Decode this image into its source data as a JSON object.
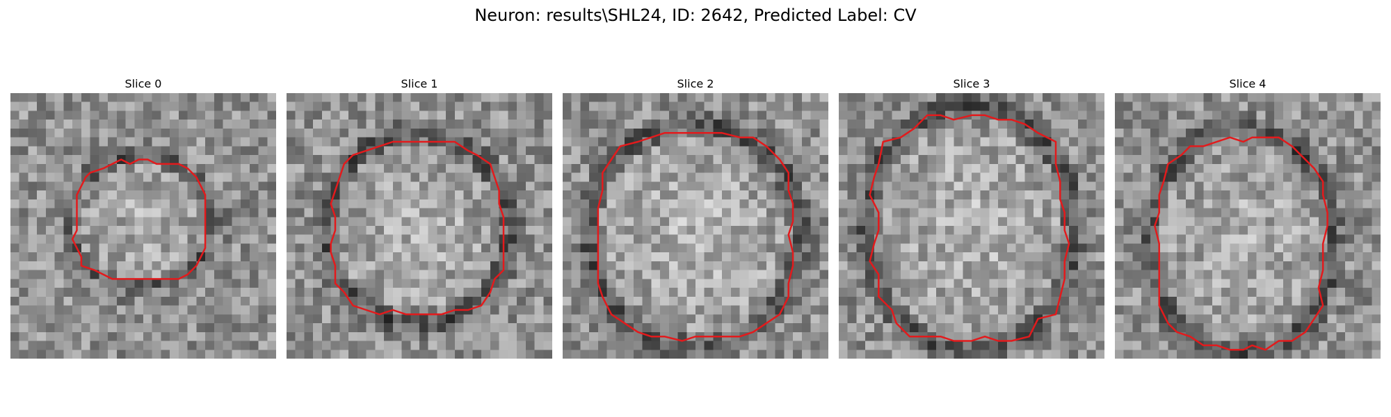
{
  "figure": {
    "title": "Neuron: results\\SHL24, ID: 2642, Predicted Label: CV"
  },
  "style": {
    "contour_color": "#e31a1c",
    "colormap": "grayscale"
  },
  "panels": [
    {
      "title": "Slice 0"
    },
    {
      "title": "Slice 1"
    },
    {
      "title": "Slice 2"
    },
    {
      "title": "Slice 3"
    },
    {
      "title": "Slice 4"
    }
  ]
}
